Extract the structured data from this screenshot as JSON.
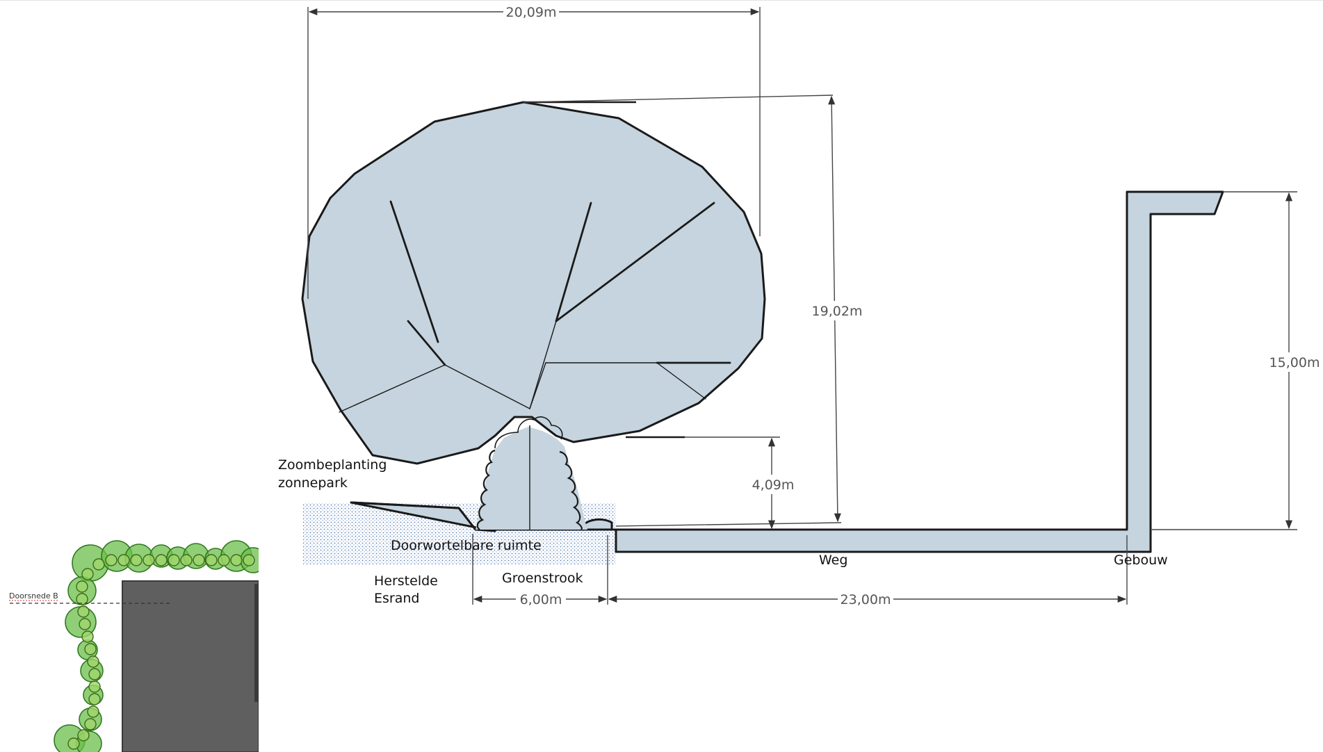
{
  "dimensions": {
    "crown_width": "20,09m",
    "tree_height": "19,02m",
    "crown_base_height": "4,09m",
    "building_height": "15,00m",
    "green_strip_width": "6,00m",
    "road_width": "23,00m"
  },
  "labels": {
    "zoom_line1": "Zoombeplanting",
    "zoom_line2": "zonnepark",
    "rootable_space": "Doorwortelbare ruimte",
    "restored_line1": "Herstelde",
    "restored_line2": "Esrand",
    "green_strip": "Groenstrook",
    "road": "Weg",
    "building": "Gebouw"
  },
  "inset": {
    "section_label": "Doorsnede B"
  },
  "colors": {
    "fill": "#c5d4de",
    "stroke": "#1a1a1a",
    "dimension": "#444444",
    "stipple": "#5a7fb8",
    "inset_building": "#5f5f5f",
    "inset_tree": "#6bbf4a"
  }
}
